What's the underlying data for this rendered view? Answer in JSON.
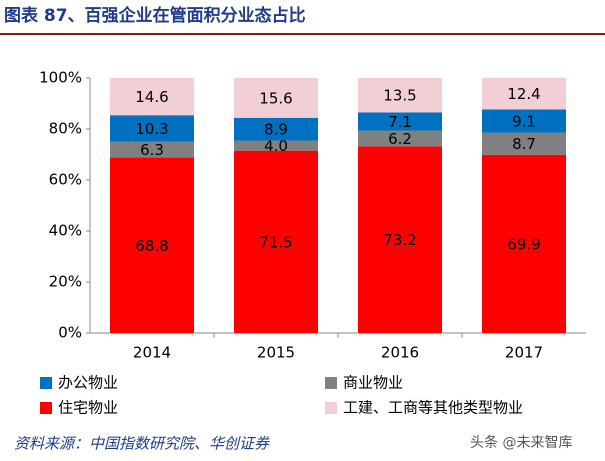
{
  "chart_data": {
    "type": "stacked_bar",
    "title": "图表 87、百强企业在管面积分业态占比",
    "categories": [
      "2014",
      "2015",
      "2016",
      "2017"
    ],
    "series": [
      {
        "name": "住宅物业",
        "color": "#ff0000",
        "values": [
          68.8,
          71.5,
          73.2,
          69.9
        ]
      },
      {
        "name": "商业物业",
        "color": "#808080",
        "values": [
          6.3,
          4.0,
          6.2,
          8.7
        ],
        "value_labels": [
          "6.3",
          "4.0",
          "6.2",
          "8.7"
        ]
      },
      {
        "name": "办公物业",
        "color": "#0070c0",
        "values": [
          10.3,
          8.9,
          7.1,
          9.1
        ]
      },
      {
        "name": "工建、工商等其他类型物业",
        "color": "#f2cfd5",
        "values": [
          14.6,
          15.6,
          13.5,
          12.4
        ]
      }
    ],
    "ylim": [
      0,
      100
    ],
    "yticks": [
      {
        "value": 0,
        "label": "0%"
      },
      {
        "value": 20,
        "label": "20%"
      },
      {
        "value": 40,
        "label": "40%"
      },
      {
        "value": 60,
        "label": "60%"
      },
      {
        "value": 80,
        "label": "80%"
      },
      {
        "value": 100,
        "label": "100%"
      }
    ],
    "grid": false,
    "source": "资料来源：中国指数研究院、华创证券",
    "watermark": "头条 @未来智库"
  }
}
